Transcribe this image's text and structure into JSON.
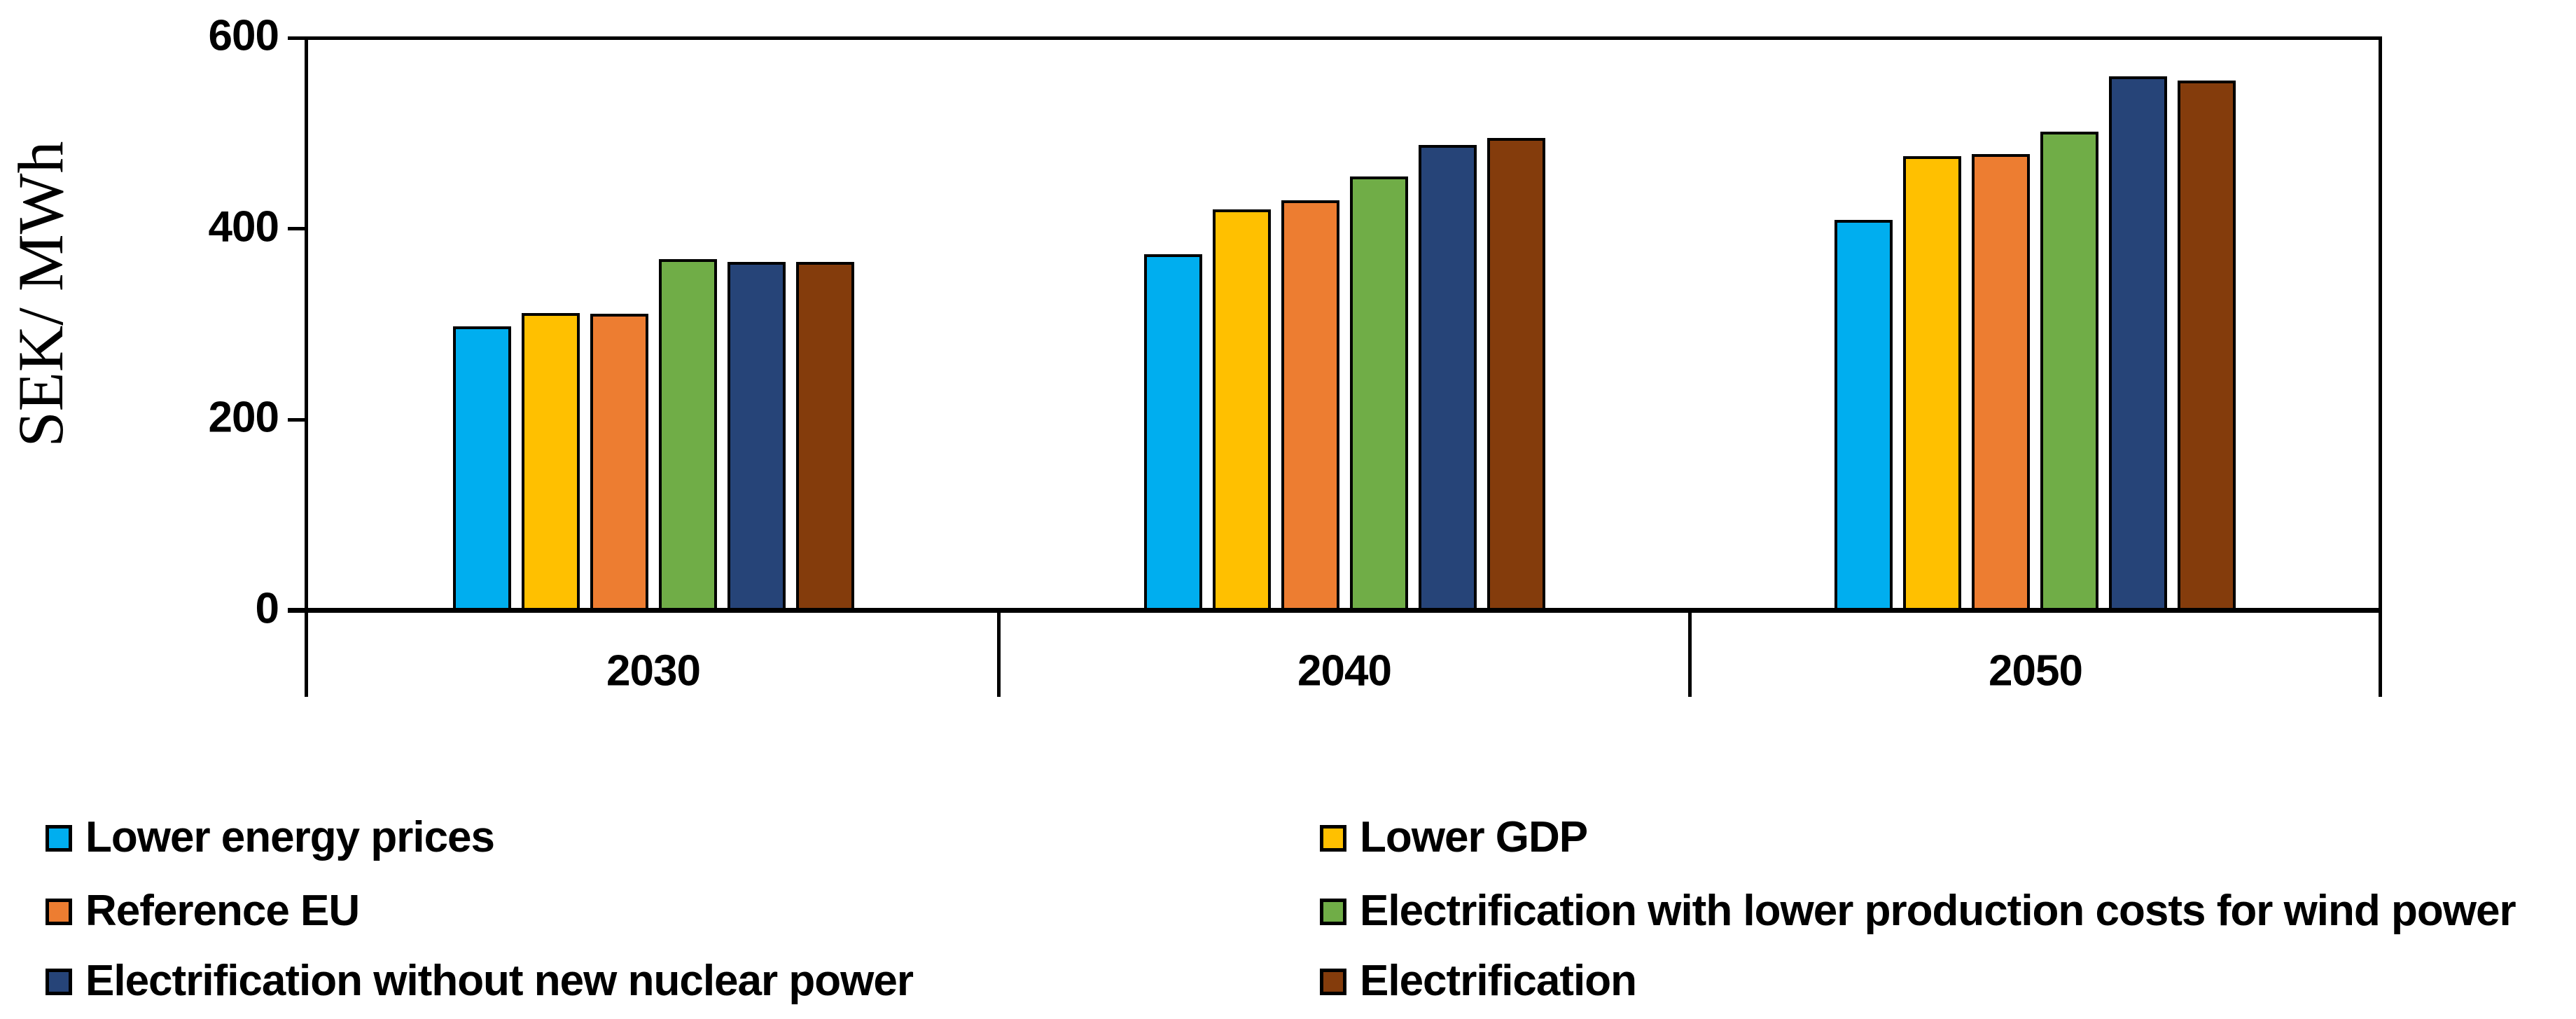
{
  "chart_data": {
    "type": "bar",
    "title": "",
    "ylabel": "SEK/ MWh",
    "xlabel": "",
    "categories": [
      "2030",
      "2040",
      "2050"
    ],
    "series": [
      {
        "name": "Lower energy prices",
        "color": "#00AEEF",
        "values": [
          298,
          373,
          409
        ]
      },
      {
        "name": "Lower GDP",
        "color": "#FFC000",
        "values": [
          312,
          420,
          476
        ]
      },
      {
        "name": "Reference EU",
        "color": "#ED7D31",
        "values": [
          311,
          430,
          478
        ]
      },
      {
        "name": "Electrification with lower production costs for wind power",
        "color": "#70AD47",
        "values": [
          368,
          455,
          502
        ]
      },
      {
        "name": "Electrification without new nuclear power",
        "color": "#264478",
        "values": [
          365,
          488,
          560
        ]
      },
      {
        "name": "Electrification",
        "color": "#843C0C",
        "values": [
          365,
          495,
          555
        ]
      }
    ],
    "ylim": [
      0,
      600
    ],
    "yticks": [
      0,
      200,
      400,
      600
    ],
    "grid": false,
    "bar_border_color": "#000000",
    "axis_color": "#000000",
    "background_color": "#FFFFFF",
    "legend_position": "bottom",
    "legend_columns": [
      [
        0,
        2,
        4
      ],
      [
        1,
        3,
        5
      ]
    ]
  }
}
